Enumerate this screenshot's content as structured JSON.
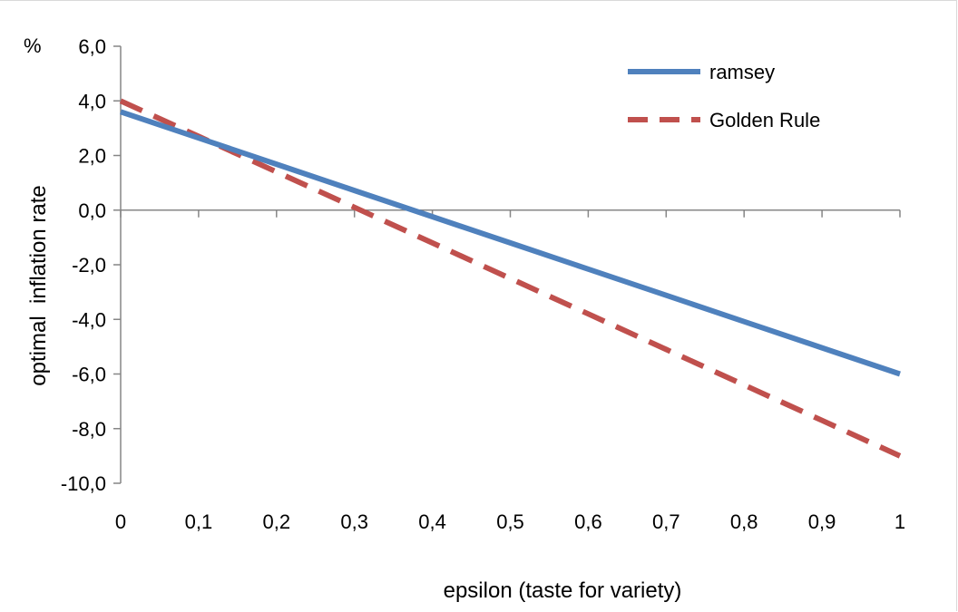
{
  "chart_data": {
    "type": "line",
    "title": "",
    "xlabel": "epsilon (taste for variety)",
    "ylabel": "optimal  inflation rate",
    "y_unit": "%",
    "xlim": [
      0,
      1
    ],
    "ylim": [
      -10,
      6
    ],
    "x_ticks": [
      "0",
      "0,1",
      "0,2",
      "0,3",
      "0,4",
      "0,5",
      "0,6",
      "0,7",
      "0,8",
      "0,9",
      "1"
    ],
    "y_ticks": [
      "6,0",
      "4,0",
      "2,0",
      "0,0",
      "-2,0",
      "-4,0",
      "-6,0",
      "-8,0",
      "-10,0"
    ],
    "y_tick_values": [
      6,
      4,
      2,
      0,
      -2,
      -4,
      -6,
      -8,
      -10
    ],
    "x": [
      0,
      0.1,
      0.2,
      0.3,
      0.4,
      0.5,
      0.6,
      0.7,
      0.8,
      0.9,
      1
    ],
    "legend_position": "top-right",
    "grid": false,
    "series": [
      {
        "name": "ramsey",
        "color": "#4f81bd",
        "style": "solid",
        "values": [
          3.6,
          2.64,
          1.68,
          0.72,
          -0.24,
          -1.2,
          -2.16,
          -3.12,
          -4.08,
          -5.04,
          -6.0
        ]
      },
      {
        "name": "Golden Rule",
        "color": "#c0504d",
        "style": "dashed",
        "values": [
          4.0,
          2.7,
          1.4,
          0.1,
          -1.2,
          -2.5,
          -3.8,
          -5.1,
          -6.4,
          -7.7,
          -9.0
        ]
      }
    ]
  }
}
